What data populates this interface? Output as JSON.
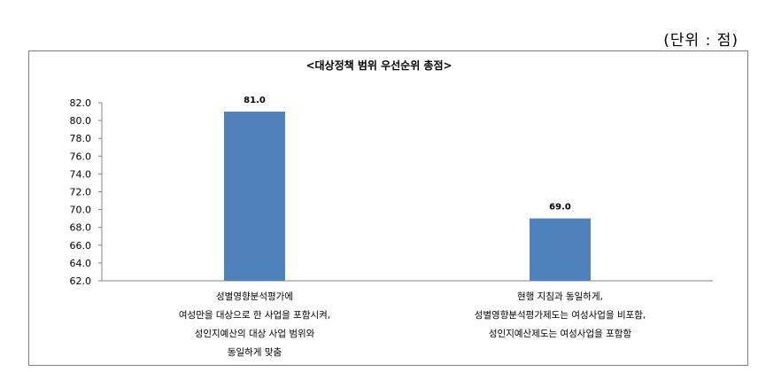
{
  "unit_note": "(단위 : 점)",
  "chart_data": {
    "type": "bar",
    "title": "<대상정책 범위 우선순위 총점>",
    "categories": [
      "성별영향분석평가에\n여성만을 대상으로 한 사업을 포함시켜,\n성인지예산의 대상 사업 범위와\n동일하게 맞춤",
      "현행 지침과 동일하게,\n성별영향분석평가제도는 여성사업을 비포함,\n성인지예산제도는 여성사업을 포함함"
    ],
    "values": [
      81.0,
      69.0
    ],
    "value_labels": [
      "81.0",
      "69.0"
    ],
    "ylim": [
      62.0,
      82.0
    ],
    "yticks": [
      "82.0",
      "80.0",
      "78.0",
      "76.0",
      "74.0",
      "72.0",
      "70.0",
      "68.0",
      "66.0",
      "64.0",
      "62.0"
    ],
    "bar_color": "#4f81bd",
    "grid": false,
    "legend": "none"
  }
}
